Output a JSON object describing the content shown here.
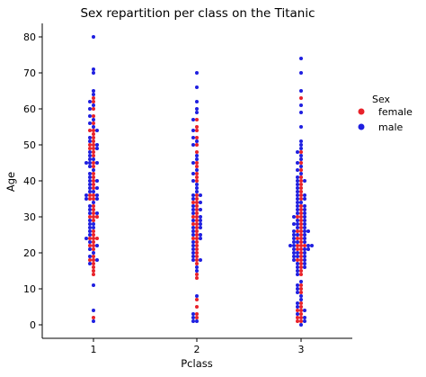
{
  "chart_data": {
    "type": "scatter",
    "subtype": "swarm",
    "title": "Sex repartition per class on the Titanic",
    "xlabel": "Pclass",
    "ylabel": "Age",
    "categories": [
      "1",
      "2",
      "3"
    ],
    "ylim": [
      -3,
      84
    ],
    "yticks": [
      0,
      10,
      20,
      30,
      40,
      50,
      60,
      70,
      80
    ],
    "grid": false,
    "legend": {
      "title": "Sex",
      "placement": "right",
      "entries": [
        {
          "label": "female",
          "color": "#e8222a"
        },
        {
          "label": "male",
          "color": "#1f1fe0"
        }
      ]
    },
    "series": [
      {
        "name": "female",
        "color": "#e8222a",
        "points": [
          {
            "class": "1",
            "ages": [
              2,
              14,
              15,
              16,
              17,
              18,
              18,
              19,
              21,
              22,
              22,
              23,
              24,
              24,
              24,
              25,
              26,
              29,
              30,
              30,
              30,
              31,
              32,
              33,
              35,
              35,
              36,
              36,
              38,
              39,
              40,
              41,
              42,
              44,
              45,
              47,
              48,
              49,
              49,
              50,
              50,
              51,
              52,
              53,
              54,
              54,
              56,
              58,
              60,
              62,
              63
            ]
          },
          {
            "class": "2",
            "ages": [
              2,
              3,
              5,
              7,
              13,
              14,
              17,
              18,
              19,
              20,
              21,
              22,
              23,
              24,
              24,
              25,
              26,
              27,
              28,
              28,
              29,
              30,
              30,
              31,
              32,
              33,
              34,
              34,
              35,
              36,
              40,
              41,
              42,
              44,
              45,
              48,
              50,
              52,
              54,
              55,
              57
            ]
          },
          {
            "class": "3",
            "ages": [
              1,
              1,
              2,
              2,
              3,
              4,
              4,
              5,
              6,
              9,
              10,
              11,
              14,
              15,
              16,
              17,
              18,
              18,
              19,
              20,
              21,
              21,
              22,
              22,
              22,
              23,
              24,
              24,
              25,
              26,
              26,
              27,
              28,
              29,
              30,
              30,
              31,
              32,
              33,
              35,
              36,
              37,
              38,
              39,
              40,
              41,
              43,
              45,
              48,
              63
            ]
          }
        ]
      },
      {
        "name": "male",
        "color": "#1f1fe0",
        "points": [
          {
            "class": "1",
            "ages": [
              1,
              4,
              11,
              17,
              18,
              19,
              20,
              21,
              22,
              23,
              24,
              25,
              26,
              27,
              27,
              28,
              28,
              29,
              31,
              31,
              32,
              33,
              34,
              35,
              35,
              36,
              36,
              37,
              37,
              38,
              38,
              39,
              40,
              40,
              41,
              42,
              43,
              44,
              45,
              45,
              45,
              46,
              46,
              47,
              48,
              49,
              50,
              51,
              52,
              54,
              55,
              56,
              57,
              58,
              60,
              61,
              62,
              64,
              65,
              70,
              71,
              80
            ]
          },
          {
            "class": "2",
            "ages": [
              1,
              1,
              2,
              3,
              8,
              15,
              16,
              18,
              18,
              19,
              20,
              21,
              22,
              23,
              24,
              25,
              25,
              26,
              27,
              27,
              28,
              29,
              29,
              30,
              31,
              32,
              32,
              33,
              34,
              35,
              36,
              36,
              37,
              38,
              39,
              40,
              42,
              43,
              45,
              46,
              47,
              50,
              51,
              52,
              54,
              57,
              59,
              60,
              62,
              66,
              70
            ]
          },
          {
            "class": "3",
            "ages": [
              0,
              1,
              2,
              3,
              4,
              5,
              6,
              7,
              8,
              9,
              10,
              11,
              12,
              14,
              15,
              16,
              16,
              17,
              17,
              18,
              18,
              19,
              19,
              19,
              20,
              20,
              20,
              21,
              21,
              21,
              22,
              22,
              22,
              22,
              23,
              23,
              23,
              24,
              24,
              25,
              25,
              25,
              26,
              26,
              26,
              27,
              27,
              28,
              28,
              28,
              29,
              29,
              30,
              30,
              31,
              31,
              32,
              32,
              33,
              33,
              34,
              34,
              35,
              35,
              36,
              36,
              37,
              38,
              39,
              40,
              40,
              41,
              42,
              43,
              44,
              45,
              46,
              47,
              48,
              49,
              50,
              51,
              55,
              59,
              61,
              65,
              70,
              74
            ]
          }
        ]
      }
    ]
  }
}
